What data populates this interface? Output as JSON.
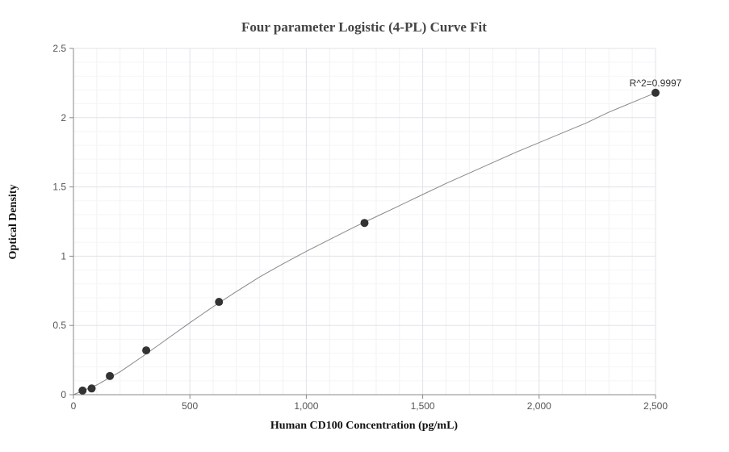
{
  "chart_data": {
    "type": "scatter",
    "title": "Four parameter Logistic (4-PL) Curve Fit",
    "xlabel": "Human CD100 Concentration (pg/mL)",
    "ylabel": "Optical Density",
    "xlim": [
      0,
      2500
    ],
    "ylim": [
      0,
      2.5
    ],
    "x_ticks": [
      0,
      500,
      1000,
      1500,
      2000,
      2500
    ],
    "x_tick_labels": [
      "0",
      "500",
      "1,000",
      "1,500",
      "2,000",
      "2,500"
    ],
    "y_ticks": [
      0,
      0.5,
      1,
      1.5,
      2,
      2.5
    ],
    "y_tick_labels": [
      "0",
      "0.5",
      "1",
      "1.5",
      "2",
      "2.5"
    ],
    "grid": true,
    "series": [
      {
        "x": [
          39.1,
          78.1,
          156.3,
          312.5,
          625,
          1250,
          2500
        ],
        "y": [
          0.03,
          0.045,
          0.135,
          0.32,
          0.67,
          1.24,
          2.18
        ],
        "color": "#333333"
      }
    ],
    "fit_curve": {
      "x": [
        0,
        100,
        200,
        300,
        400,
        500,
        600,
        700,
        800,
        900,
        1000,
        1100,
        1200,
        1300,
        1400,
        1500,
        1600,
        1700,
        1800,
        1900,
        2000,
        2100,
        2200,
        2300,
        2400,
        2500
      ],
      "y": [
        0.0,
        0.07,
        0.165,
        0.28,
        0.4,
        0.52,
        0.635,
        0.745,
        0.85,
        0.945,
        1.035,
        1.12,
        1.205,
        1.285,
        1.365,
        1.445,
        1.525,
        1.6,
        1.675,
        1.75,
        1.82,
        1.89,
        1.96,
        2.04,
        2.11,
        2.18
      ],
      "color": "#888888"
    },
    "annotation": "R^2=0.9997"
  }
}
